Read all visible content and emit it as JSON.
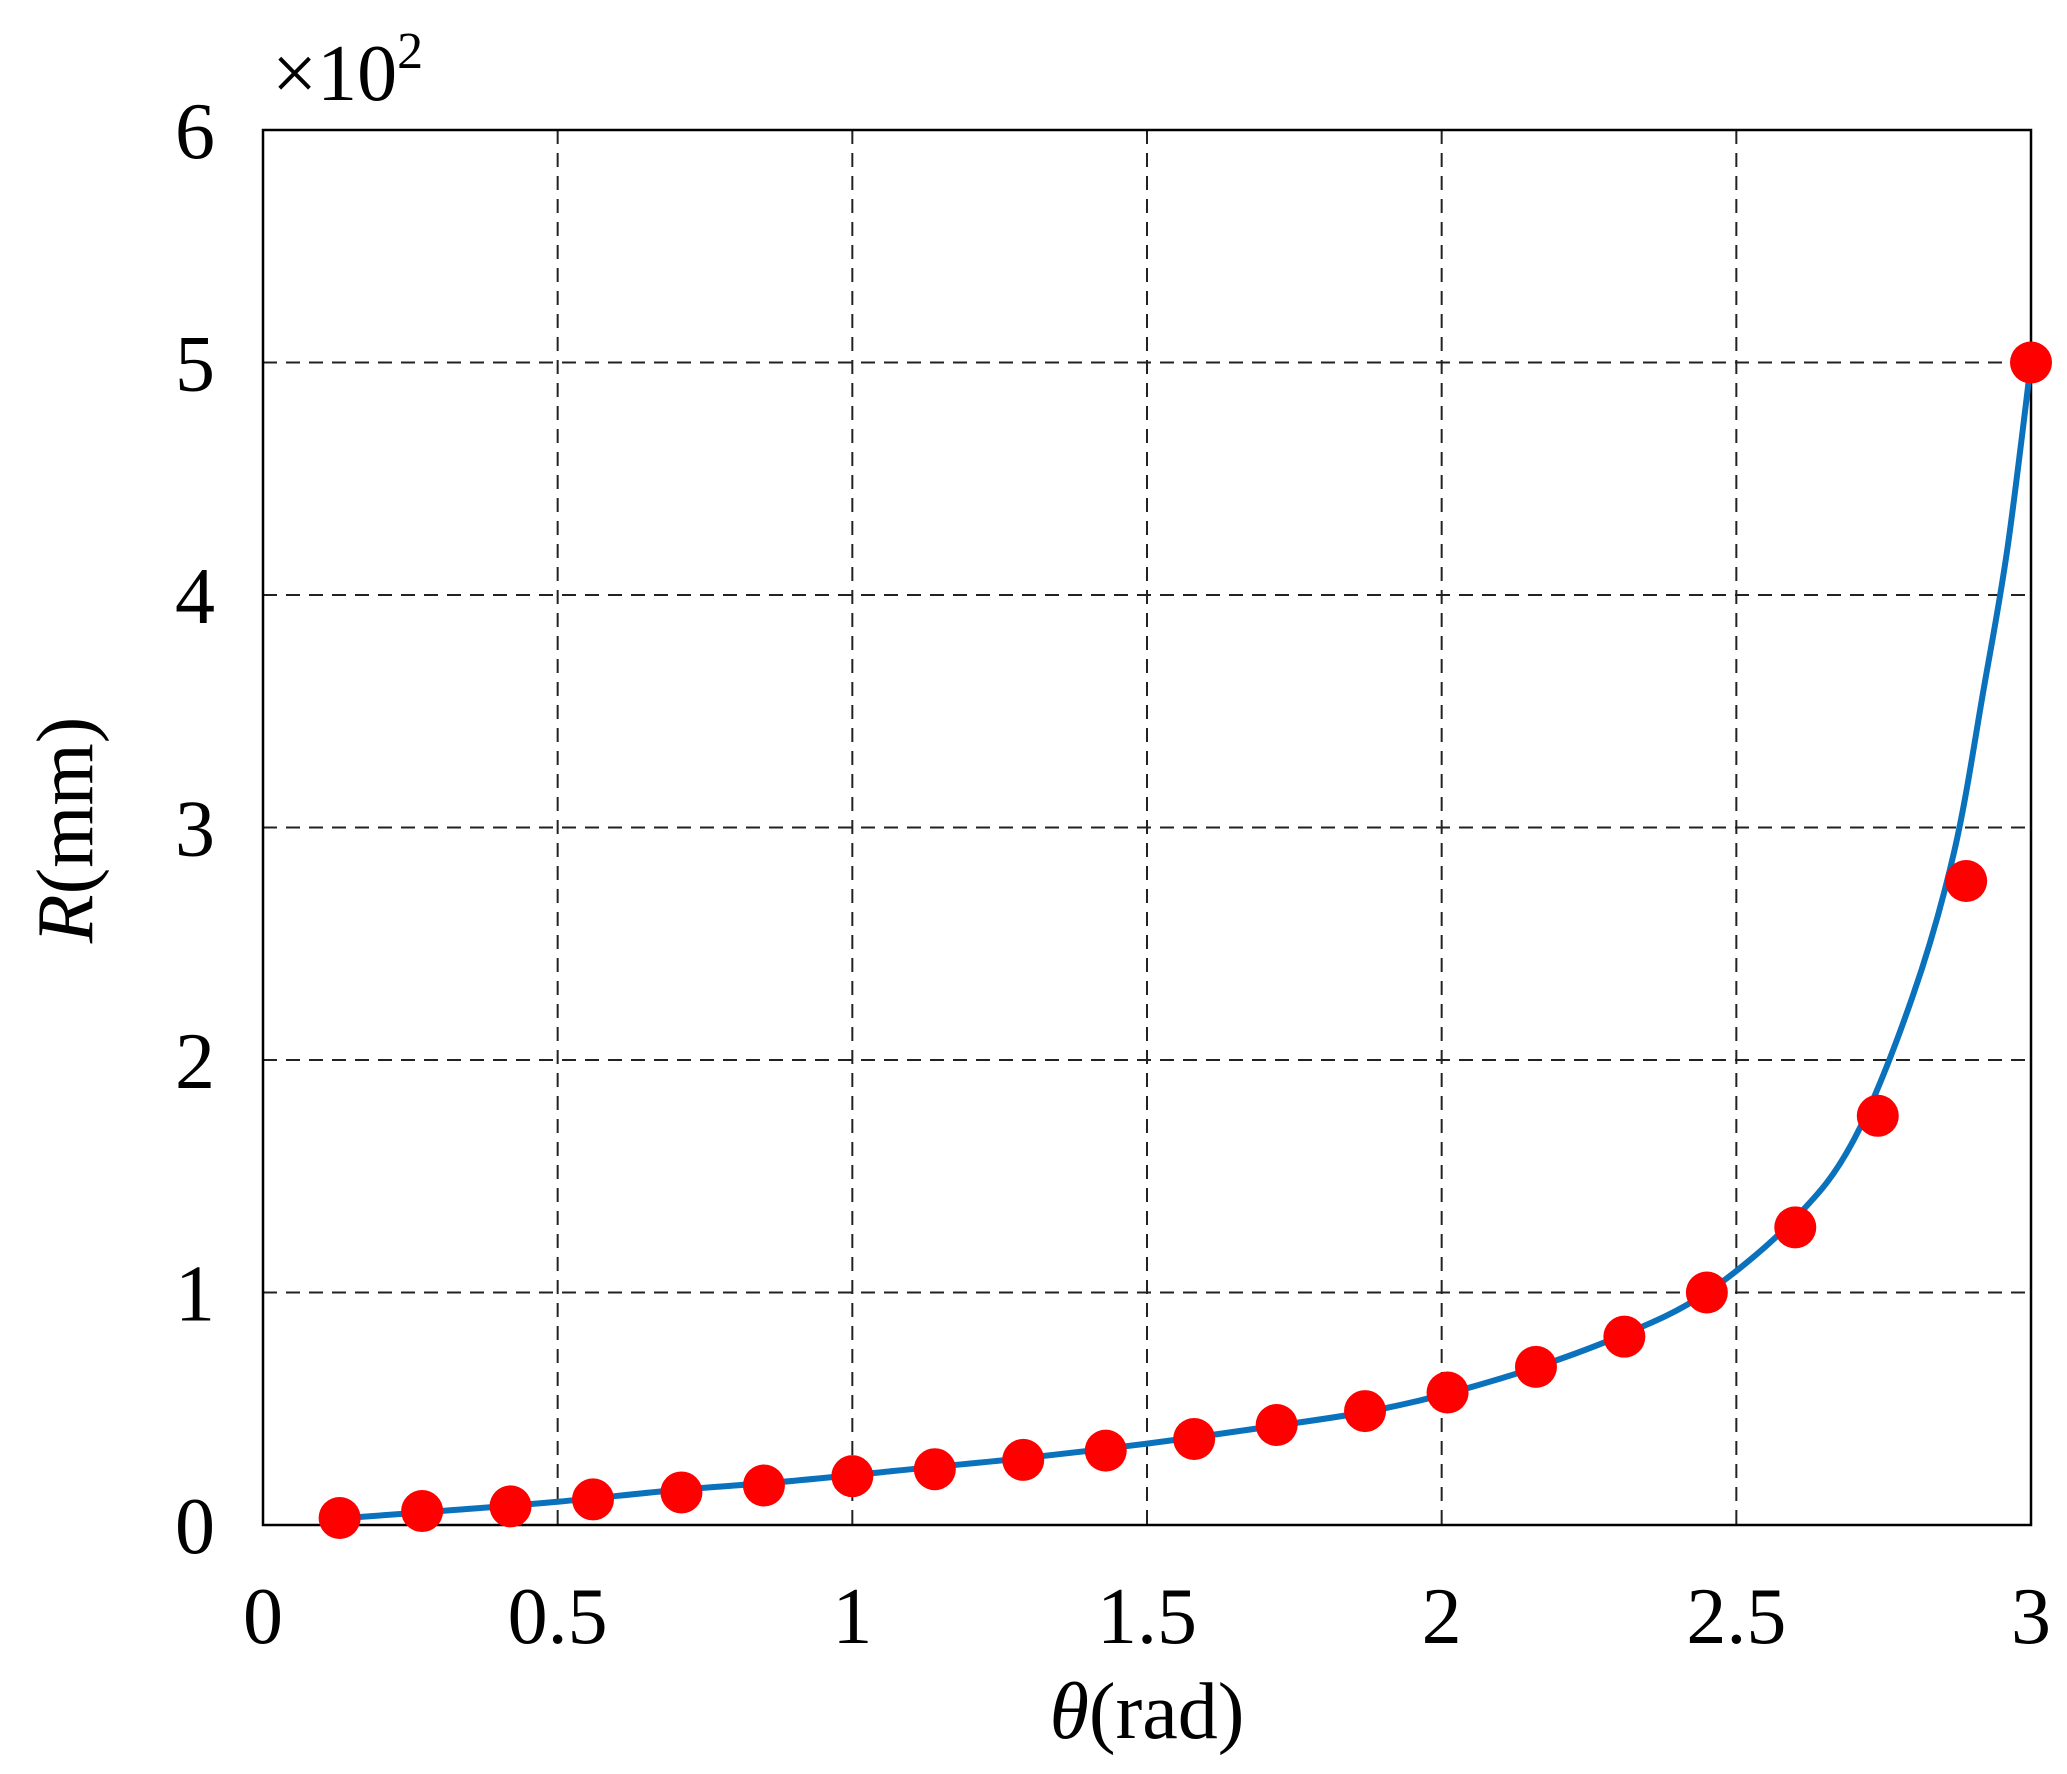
{
  "chart_data": {
    "type": "line",
    "title": "",
    "xlabel": {
      "symbol": "θ",
      "unit": "(rad)"
    },
    "ylabel": {
      "symbol": "R",
      "unit": "(mm)"
    },
    "y_multiplier": {
      "base": "×10",
      "exponent": "2"
    },
    "xlim": [
      0,
      3
    ],
    "ylim": [
      0,
      6
    ],
    "x_ticks": [
      "0",
      "0.5",
      "1",
      "1.5",
      "2",
      "2.5",
      "3"
    ],
    "y_ticks": [
      "0",
      "1",
      "2",
      "3",
      "4",
      "5",
      "6"
    ],
    "grid": true,
    "series": [
      {
        "type": "line",
        "color": "#0a72bd",
        "x": [
          0.14,
          0.3,
          0.5,
          0.7,
          0.9,
          1.1,
          1.3,
          1.5,
          1.7,
          1.9,
          2.1,
          2.3,
          2.45,
          2.6,
          2.7,
          2.8,
          2.87,
          2.92,
          2.96,
          3.0
        ],
        "y": [
          0.03,
          0.06,
          0.1,
          0.15,
          0.19,
          0.24,
          0.29,
          0.35,
          0.42,
          0.5,
          0.63,
          0.81,
          1.0,
          1.32,
          1.66,
          2.28,
          2.9,
          3.6,
          4.2,
          5.0
        ]
      },
      {
        "type": "scatter",
        "color": "#ff0000",
        "x": [
          0.13,
          0.27,
          0.42,
          0.56,
          0.71,
          0.85,
          1.0,
          1.14,
          1.29,
          1.43,
          1.58,
          1.72,
          1.87,
          2.01,
          2.16,
          2.31,
          2.45,
          2.6,
          2.74,
          2.89,
          3.0
        ],
        "y": [
          0.03,
          0.06,
          0.08,
          0.11,
          0.14,
          0.17,
          0.21,
          0.24,
          0.28,
          0.32,
          0.37,
          0.43,
          0.49,
          0.57,
          0.68,
          0.81,
          1.0,
          1.28,
          1.76,
          2.77,
          5.0
        ]
      }
    ]
  }
}
